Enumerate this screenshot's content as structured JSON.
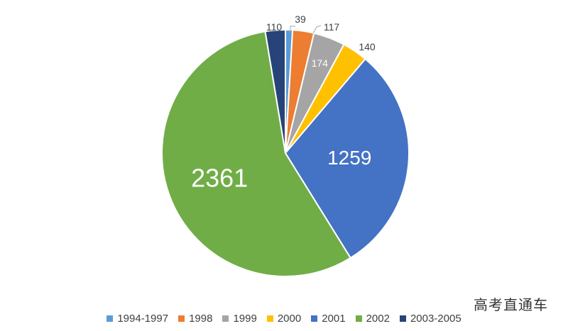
{
  "chart_data": {
    "type": "pie",
    "categories": [
      "1994-1997",
      "1998",
      "1999",
      "2000",
      "2001",
      "2002",
      "2003-2005"
    ],
    "values": [
      39,
      117,
      174,
      140,
      1259,
      2361,
      110
    ],
    "colors": [
      "#5B9BD5",
      "#ED7D31",
      "#A5A5A5",
      "#FFC000",
      "#4472C4",
      "#70AD47",
      "#264478"
    ],
    "data_labels": [
      "39",
      "117",
      "174",
      "140",
      "1259",
      "2361",
      "110"
    ],
    "start_angle_deg": 0,
    "direction": "clockwise",
    "legend_position": "bottom",
    "title": ""
  },
  "watermark": "高考直通车"
}
